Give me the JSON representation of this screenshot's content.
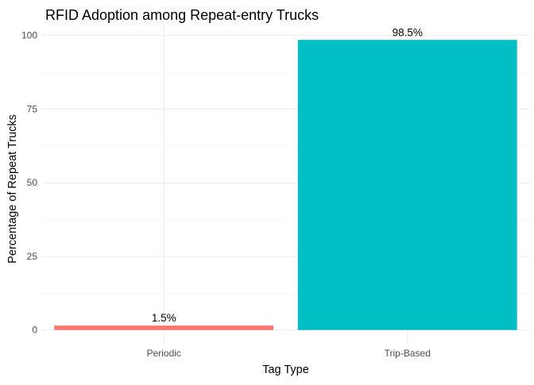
{
  "chart_data": {
    "type": "bar",
    "title": "RFID Adoption among Repeat-entry Trucks",
    "xlabel": "Tag Type",
    "ylabel": "Percentage of Repeat Trucks",
    "categories": [
      "Periodic",
      "Trip-Based"
    ],
    "values": [
      1.5,
      98.5
    ],
    "data_labels": [
      "1.5%",
      "98.5%"
    ],
    "colors": [
      "#F8766D",
      "#00BFC4"
    ],
    "yticks": [
      0,
      25,
      50,
      75,
      100
    ],
    "ytick_labels": [
      "0",
      "25",
      "50",
      "75",
      "100"
    ],
    "ylim": [
      -4.925,
      103.425
    ],
    "grid": true,
    "legend": "none"
  }
}
